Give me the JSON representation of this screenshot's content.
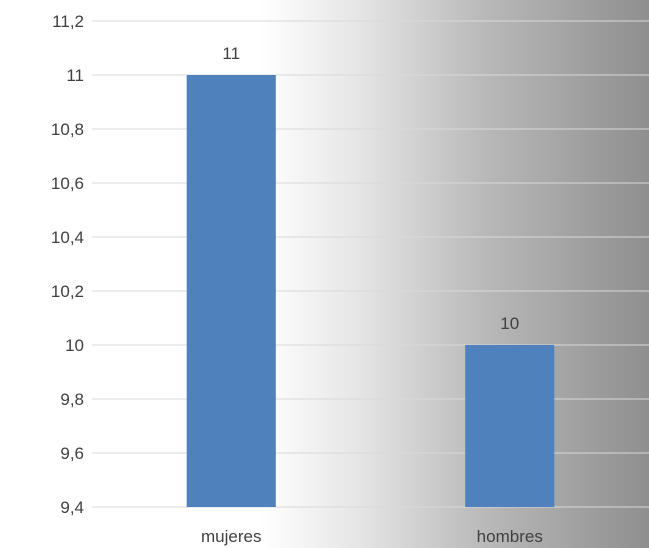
{
  "chart_data": {
    "type": "bar",
    "categories": [
      "mujeres",
      "hombres"
    ],
    "values": [
      11,
      10
    ],
    "data_labels": [
      "11",
      "10"
    ],
    "ylim": [
      9.4,
      11.2
    ],
    "yticks": [
      9.4,
      9.6,
      9.8,
      10,
      10.2,
      10.4,
      10.6,
      10.8,
      11,
      11.2
    ],
    "ytick_labels": [
      "9,4",
      "9,6",
      "9,8",
      "10",
      "10,2",
      "10,4",
      "10,6",
      "10,8",
      "11",
      "11,2"
    ],
    "grid": true,
    "legend": "none",
    "title": "",
    "xlabel": "",
    "ylabel": "",
    "bar_color": "#4f81bd"
  }
}
